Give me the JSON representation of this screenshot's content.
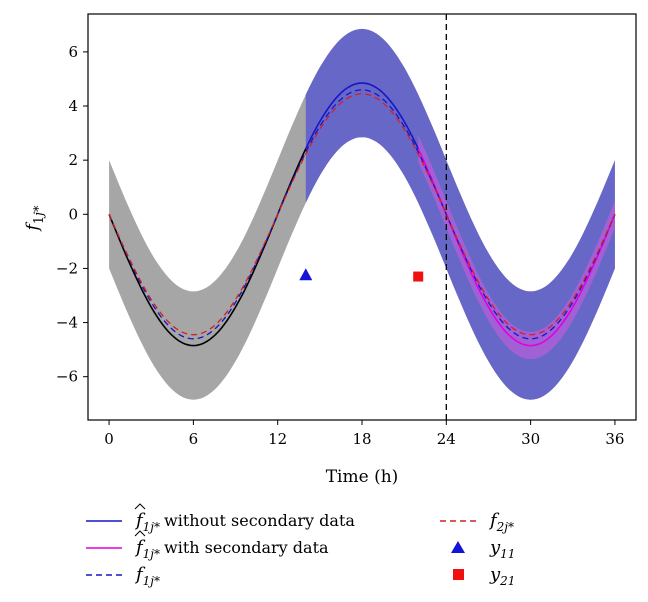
{
  "chart_data": {
    "type": "line",
    "xlabel": "Time (h)",
    "ylabel": "f1j*",
    "xlim": [
      -1.5,
      37.5
    ],
    "ylim": [
      -7.6,
      7.4
    ],
    "xticks": [
      0,
      6,
      12,
      18,
      24,
      30,
      36
    ],
    "yticks": [
      -6,
      -4,
      -2,
      0,
      2,
      4,
      6
    ],
    "grid": false,
    "vline_x": 24,
    "legend_placement": "below",
    "colors": {
      "gray_band": "#a6a6a6",
      "blue_band": "#6767c8",
      "magenta_band": "#b060d8",
      "without_secondary": "#1616c8",
      "with_secondary": "#e000e0",
      "f1_dashed": "#1616c8",
      "f2_dashed": "#d42020",
      "y11": "#1414d8",
      "y21": "#f01010"
    },
    "bands": [
      {
        "key": "gray",
        "x0": 0,
        "x1": 36,
        "half_width": 2.0,
        "amp": 4.85
      },
      {
        "key": "blue",
        "x0": 14,
        "x1": 36,
        "half_width": 2.0,
        "amp": 4.85
      },
      {
        "key": "magenta",
        "x0": 22,
        "x1": 36,
        "half_width": 0.5,
        "amp": 4.85
      }
    ],
    "series": [
      {
        "key": "black",
        "x0": 0,
        "x1": 14,
        "amp": 4.85
      },
      {
        "key": "without",
        "x0": 14,
        "x1": 22,
        "amp": 4.85
      },
      {
        "key": "with",
        "x0": 22,
        "x1": 36,
        "amp": 4.85
      },
      {
        "key": "f1",
        "x0": 0,
        "x1": 36,
        "amp": 4.6
      },
      {
        "key": "f2",
        "x0": 0,
        "x1": 36,
        "amp": 4.45
      }
    ],
    "points": [
      {
        "key": "y11",
        "x": 14,
        "y": -2.25,
        "marker": "triangle"
      },
      {
        "key": "y21",
        "x": 22,
        "y": -2.3,
        "marker": "square"
      }
    ],
    "legend": [
      {
        "main": "f",
        "sub": "1j*",
        "hat": true,
        "text": "without secondary data"
      },
      {
        "main": "f",
        "sub": "1j*",
        "hat": true,
        "text": "with secondary data"
      },
      {
        "main": "f",
        "sub": "1j*",
        "hat": false,
        "text": ""
      },
      {
        "main": "f",
        "sub": "2j*",
        "hat": false,
        "text": ""
      },
      {
        "main": "y",
        "sub": "11",
        "hat": false,
        "text": ""
      },
      {
        "main": "y",
        "sub": "21",
        "hat": false,
        "text": ""
      }
    ]
  }
}
